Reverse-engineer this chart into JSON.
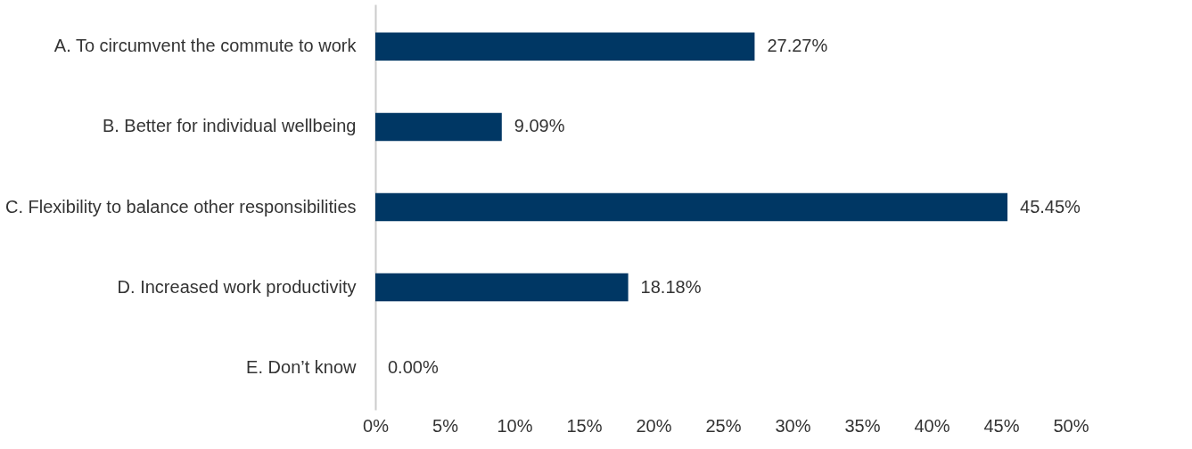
{
  "chart_data": {
    "type": "bar",
    "orientation": "horizontal",
    "categories": [
      "A. To circumvent the commute to work",
      "B. Better for individual wellbeing",
      "C. Flexibility to balance other responsibilities",
      "D. Increased work productivity",
      "E. Don’t know"
    ],
    "values": [
      27.27,
      9.09,
      45.45,
      18.18,
      0.0
    ],
    "value_labels": [
      "27.27%",
      "9.09%",
      "45.45%",
      "18.18%",
      "0.00%"
    ],
    "color": "#003764",
    "xlim": [
      0,
      50
    ],
    "xticks": [
      {
        "value": 0,
        "label": "0%"
      },
      {
        "value": 5,
        "label": "5%"
      },
      {
        "value": 10,
        "label": "10%"
      },
      {
        "value": 15,
        "label": "15%"
      },
      {
        "value": 20,
        "label": "20%"
      },
      {
        "value": 25,
        "label": "25%"
      },
      {
        "value": 30,
        "label": "30%"
      },
      {
        "value": 35,
        "label": "35%"
      },
      {
        "value": 40,
        "label": "40%"
      },
      {
        "value": 45,
        "label": "45%"
      },
      {
        "value": 50,
        "label": "50%"
      }
    ],
    "grid": false
  }
}
